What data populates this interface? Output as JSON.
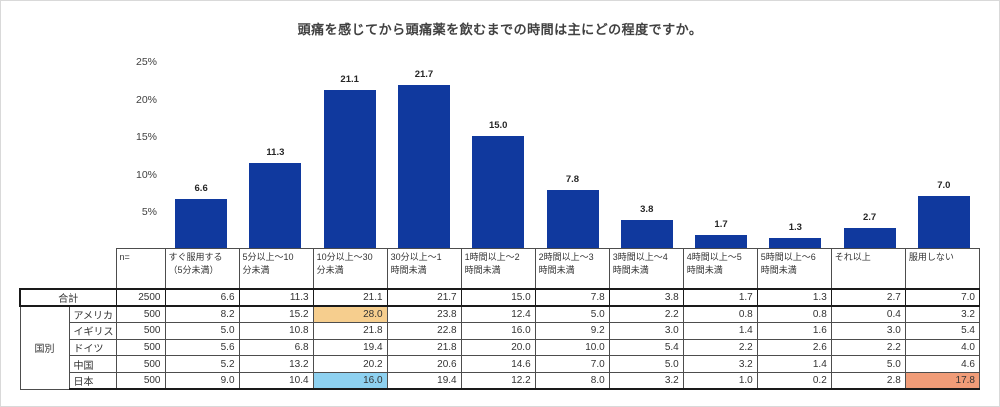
{
  "title": "頭痛を感じてから頭痛薬を飲むまでの時間は主にどの程度ですか。",
  "colors": {
    "bar": "#10399E",
    "highlight_orange": "#F6CE8E",
    "highlight_blue": "#8ED1F0",
    "highlight_salmon": "#F09C78"
  },
  "chart_data": {
    "type": "bar",
    "title": "頭痛を感じてから頭痛薬を飲むまでの時間は主にどの程度ですか。",
    "categories": [
      "すぐ服用する（5分未満）",
      "5分以上～10分未満",
      "10分以上～30分未満",
      "30分以上～1時間未満",
      "1時間以上～2時間未満",
      "2時間以上～3時間未満",
      "3時間以上～4時間未満",
      "4時間以上～5時間未満",
      "5時間以上～6時間未満",
      "それ以上",
      "服用しない"
    ],
    "values": [
      6.6,
      11.3,
      21.1,
      21.7,
      15.0,
      7.8,
      3.8,
      1.7,
      1.3,
      2.7,
      7.0
    ],
    "value_labels": [
      "6.6",
      "11.3",
      "21.1",
      "21.7",
      "15.0",
      "7.8",
      "3.8",
      "1.7",
      "1.3",
      "2.7",
      "7.0"
    ],
    "xlabel": "",
    "ylabel": "%",
    "ylim": [
      0,
      25
    ],
    "yticks": [
      {
        "value": 25,
        "label": "25%"
      },
      {
        "value": 20,
        "label": "20%"
      },
      {
        "value": 15,
        "label": "15%"
      },
      {
        "value": 10,
        "label": "10%"
      },
      {
        "value": 5,
        "label": "5%"
      }
    ],
    "grid": false,
    "legend": false
  },
  "table": {
    "n_header": "n=",
    "group_label": "国別",
    "col_headers": [
      [
        "すぐ服用する",
        "（5分未満）"
      ],
      [
        "5分以上～10",
        "分未満"
      ],
      [
        "10分以上～30",
        "分未満"
      ],
      [
        "30分以上～1",
        "時間未満"
      ],
      [
        "1時間以上～2",
        "時間未満"
      ],
      [
        "2時間以上～3",
        "時間未満"
      ],
      [
        "3時間以上～4",
        "時間未満"
      ],
      [
        "4時間以上～5",
        "時間未満"
      ],
      [
        "5時間以上～6",
        "時間未満"
      ],
      [
        "それ以上"
      ],
      [
        "服用しない"
      ]
    ],
    "rows": [
      {
        "label": "合計",
        "n": "2500",
        "values": [
          "6.6",
          "11.3",
          "21.1",
          "21.7",
          "15.0",
          "7.8",
          "3.8",
          "1.7",
          "1.3",
          "2.7",
          "7.0"
        ],
        "highlights": {}
      },
      {
        "label": "アメリカ",
        "n": "500",
        "values": [
          "8.2",
          "15.2",
          "28.0",
          "23.8",
          "12.4",
          "5.0",
          "2.2",
          "0.8",
          "0.8",
          "0.4",
          "3.2"
        ],
        "highlights": {
          "2": "highlight_orange"
        }
      },
      {
        "label": "イギリス",
        "n": "500",
        "values": [
          "5.0",
          "10.8",
          "21.8",
          "22.8",
          "16.0",
          "9.2",
          "3.0",
          "1.4",
          "1.6",
          "3.0",
          "5.4"
        ],
        "highlights": {}
      },
      {
        "label": "ドイツ",
        "n": "500",
        "values": [
          "5.6",
          "6.8",
          "19.4",
          "21.8",
          "20.0",
          "10.0",
          "5.4",
          "2.2",
          "2.6",
          "2.2",
          "4.0"
        ],
        "highlights": {}
      },
      {
        "label": "中国",
        "n": "500",
        "values": [
          "5.2",
          "13.2",
          "20.2",
          "20.6",
          "14.6",
          "7.0",
          "5.0",
          "3.2",
          "1.4",
          "5.0",
          "4.6"
        ],
        "highlights": {}
      },
      {
        "label": "日本",
        "n": "500",
        "values": [
          "9.0",
          "10.4",
          "16.0",
          "19.4",
          "12.2",
          "8.0",
          "3.2",
          "1.0",
          "0.2",
          "2.8",
          "17.8"
        ],
        "highlights": {
          "2": "highlight_blue",
          "10": "highlight_salmon"
        }
      }
    ]
  }
}
